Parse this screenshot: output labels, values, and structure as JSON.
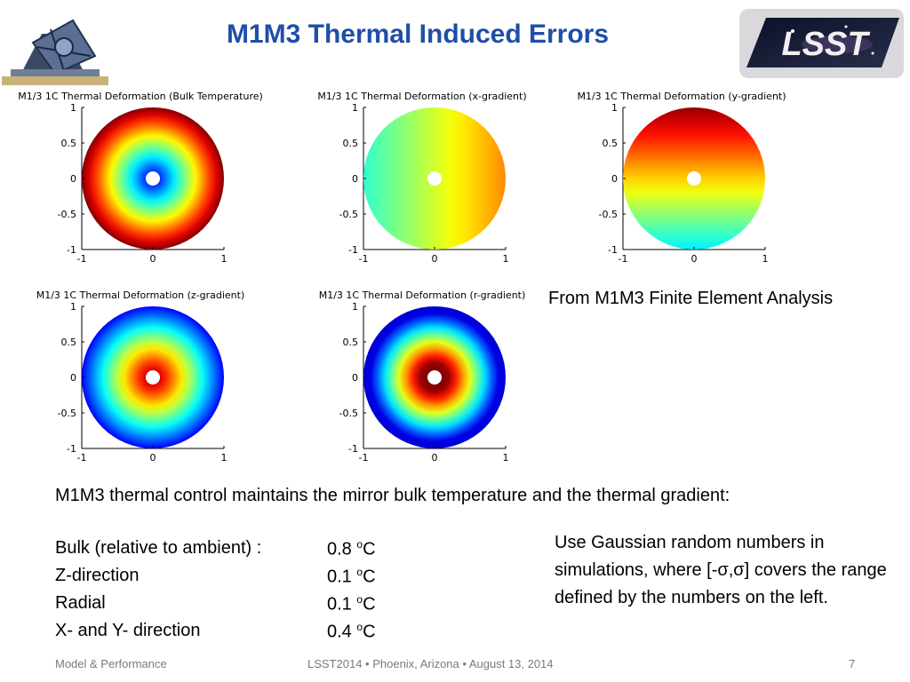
{
  "header": {
    "title": "M1M3 Thermal Induced Errors",
    "logo_text": "LSST",
    "left_image": "telescope-image"
  },
  "plots": [
    {
      "title": "M1/3 1C Thermal Deformation (Bulk Temperature)",
      "pattern": "bulk"
    },
    {
      "title": "M1/3 1C Thermal Deformation (x-gradient)",
      "pattern": "xgrad"
    },
    {
      "title": "M1/3 1C Thermal Deformation (y-gradient)",
      "pattern": "ygrad"
    },
    {
      "title": "M1/3 1C Thermal Deformation (z-gradient)",
      "pattern": "zgrad"
    },
    {
      "title": "M1/3 1C Thermal Deformation (r-gradient)",
      "pattern": "rgrad"
    }
  ],
  "axis": {
    "y_ticks": [
      "1",
      "0.5",
      "0",
      "-0.5",
      "-1"
    ],
    "x_ticks": [
      "-1",
      "0",
      "1"
    ]
  },
  "fea_caption": "From M1M3 Finite Element Analysis",
  "summary": "M1M3 thermal control maintains the mirror bulk temperature and the thermal gradient:",
  "requirements": [
    {
      "label": "Bulk (relative to ambient) :",
      "value": "0.8",
      "unit": "C",
      "sup": "o"
    },
    {
      "label": "Z-direction",
      "value": "0.1",
      "unit": "C",
      "sup": "o"
    },
    {
      "label": "Radial",
      "value": "0.1",
      "unit": "C",
      "sup": "o"
    },
    {
      "label": "X- and Y- direction",
      "value": "0.4",
      "unit": "C",
      "sup": "o"
    }
  ],
  "note": "Use Gaussian random numbers in simulations, where [-σ,σ] covers the range defined by the numbers on the left.",
  "footer": {
    "left": "Model & Performance",
    "center": "LSST2014 • Phoenix, Arizona • August 13, 2014",
    "page": "7"
  }
}
